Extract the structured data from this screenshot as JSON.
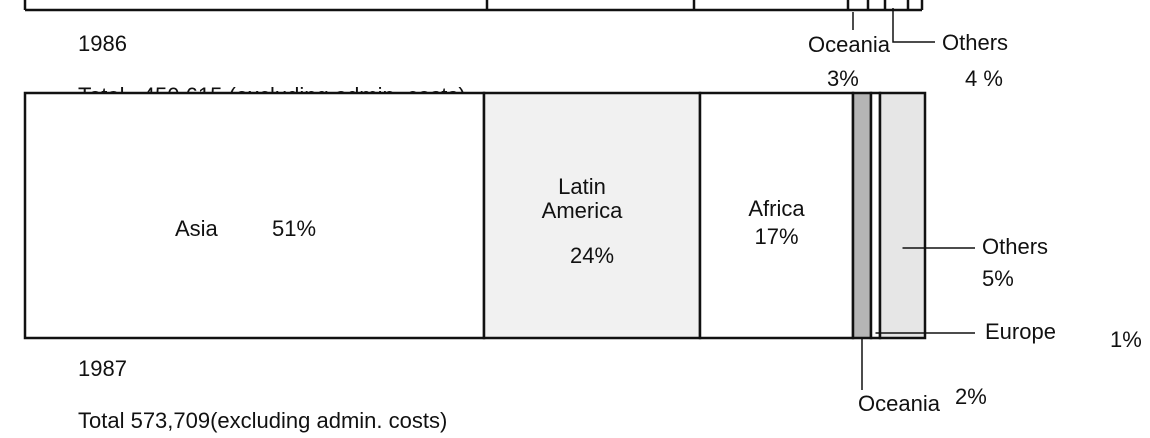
{
  "chart_data": [
    {
      "type": "stacked-bar-fragment",
      "year": "1986",
      "total_label": "Total   450,615 (excluding admin. costs)",
      "categories": [
        "Oceania",
        "Others"
      ],
      "values": [
        3,
        4
      ],
      "value_labels": [
        "3%",
        "4 %"
      ]
    },
    {
      "type": "stacked-bar",
      "year": "1987",
      "total_label": "Total 573,709(excluding admin. costs)",
      "categories": [
        "Asia",
        "Latin America",
        "Africa",
        "Oceania",
        "Europe",
        "Others"
      ],
      "values": [
        51,
        24,
        17,
        2,
        1,
        5
      ],
      "value_labels": [
        "51%",
        "24%",
        "17%",
        "2%",
        "1%",
        "5%"
      ],
      "colors": [
        "#ffffff",
        "#f1f1f1",
        "#ffffff",
        "#b5b5b5",
        "#ffffff",
        "#e6e6e6"
      ]
    }
  ]
}
